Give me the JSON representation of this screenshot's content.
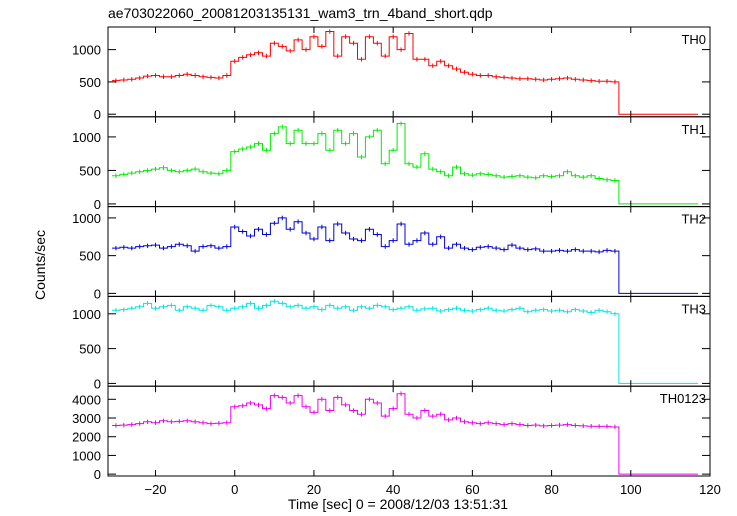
{
  "chart_data": {
    "type": "line",
    "title": "ae703022060_20081203135131_wam3_trn_4band_short.qdp",
    "xlabel": "Time [sec] 0 = 2008/12/03 13:51:31",
    "ylabel": "Counts/sec",
    "xlim": [
      -32,
      120
    ],
    "xticks": [
      -20,
      0,
      20,
      40,
      60,
      80,
      100,
      120
    ],
    "xtick_labels": [
      "−20",
      "0",
      "20",
      "40",
      "60",
      "80",
      "100",
      "120"
    ],
    "grid": false,
    "bin_width": 1,
    "x": [
      -30,
      -28,
      -26,
      -24,
      -22,
      -20,
      -18,
      -16,
      -14,
      -12,
      -10,
      -8,
      -6,
      -4,
      -2,
      0,
      2,
      4,
      6,
      8,
      10,
      12,
      14,
      16,
      18,
      20,
      22,
      24,
      26,
      28,
      30,
      32,
      34,
      36,
      38,
      40,
      42,
      44,
      46,
      48,
      50,
      52,
      54,
      56,
      58,
      60,
      62,
      64,
      66,
      68,
      70,
      72,
      74,
      76,
      78,
      80,
      82,
      84,
      86,
      88,
      90,
      92,
      94,
      96,
      98,
      100,
      102,
      104,
      106,
      108,
      110,
      112,
      114,
      116
    ],
    "series": [
      {
        "name": "TH0",
        "color": "#ff0000",
        "ylim": [
          -40,
          1350
        ],
        "yticks": [
          0,
          500,
          1000
        ],
        "values": [
          520,
          530,
          540,
          560,
          590,
          600,
          580,
          580,
          600,
          620,
          600,
          580,
          570,
          560,
          600,
          820,
          880,
          920,
          950,
          900,
          1100,
          1050,
          980,
          1150,
          1000,
          1200,
          1050,
          1280,
          900,
          1200,
          1100,
          850,
          1200,
          1100,
          900,
          1200,
          1000,
          1250,
          850,
          850,
          750,
          820,
          750,
          700,
          650,
          620,
          600,
          600,
          580,
          570,
          560,
          550,
          550,
          540,
          530,
          540,
          550,
          560,
          540,
          530,
          520,
          510,
          510,
          500,
          0,
          0,
          0,
          0,
          0,
          0,
          0,
          0,
          0,
          0
        ]
      },
      {
        "name": "TH1",
        "color": "#00ee00",
        "ylim": [
          -40,
          1300
        ],
        "yticks": [
          0,
          500,
          1000
        ],
        "values": [
          420,
          440,
          460,
          480,
          500,
          520,
          540,
          500,
          480,
          500,
          520,
          480,
          460,
          450,
          500,
          780,
          820,
          850,
          900,
          800,
          1050,
          1150,
          900,
          1100,
          900,
          900,
          1050,
          800,
          1100,
          900,
          1050,
          700,
          1000,
          1100,
          600,
          800,
          1200,
          600,
          550,
          750,
          520,
          480,
          420,
          550,
          450,
          430,
          450,
          440,
          420,
          400,
          410,
          420,
          400,
          390,
          420,
          410,
          420,
          480,
          420,
          400,
          420,
          380,
          360,
          350,
          0,
          0,
          0,
          0,
          0,
          0,
          0,
          0,
          0,
          0
        ]
      },
      {
        "name": "TH2",
        "color": "#0000dd",
        "ylim": [
          -40,
          1150
        ],
        "yticks": [
          0,
          500,
          1000
        ],
        "values": [
          600,
          610,
          600,
          620,
          630,
          640,
          600,
          620,
          650,
          630,
          560,
          620,
          630,
          600,
          620,
          880,
          820,
          760,
          850,
          780,
          930,
          1000,
          850,
          950,
          800,
          720,
          880,
          700,
          920,
          800,
          720,
          700,
          850,
          780,
          620,
          700,
          920,
          650,
          700,
          800,
          650,
          750,
          600,
          650,
          600,
          580,
          610,
          620,
          600,
          580,
          640,
          600,
          580,
          590,
          560,
          560,
          570,
          560,
          580,
          560,
          560,
          550,
          570,
          560,
          0,
          0,
          0,
          0,
          0,
          0,
          0,
          0,
          0,
          0
        ]
      },
      {
        "name": "TH3",
        "color": "#00e5e5",
        "ylim": [
          -40,
          1250
        ],
        "yticks": [
          0,
          500,
          1000
        ],
        "values": [
          1050,
          1060,
          1080,
          1100,
          1150,
          1080,
          1100,
          1120,
          1050,
          1100,
          1080,
          1050,
          1120,
          1100,
          1050,
          1080,
          1100,
          1150,
          1080,
          1120,
          1180,
          1150,
          1100,
          1120,
          1080,
          1100,
          1060,
          1120,
          1080,
          1100,
          1050,
          1100,
          1080,
          1120,
          1100,
          1060,
          1080,
          1100,
          1050,
          1070,
          1080,
          1040,
          1060,
          1080,
          1050,
          1040,
          1060,
          1080,
          1050,
          1040,
          1060,
          1080,
          1030,
          1050,
          1060,
          1040,
          1050,
          1030,
          1060,
          1040,
          1020,
          1050,
          1030,
          1000,
          0,
          0,
          0,
          0,
          0,
          0,
          0,
          0,
          0,
          0
        ]
      },
      {
        "name": "TH0123",
        "color": "#ee00ee",
        "ylim": [
          -100,
          4700
        ],
        "yticks": [
          0,
          1000,
          2000,
          3000,
          4000
        ],
        "values": [
          2600,
          2620,
          2650,
          2700,
          2800,
          2750,
          2850,
          2800,
          2820,
          2850,
          2800,
          2750,
          2700,
          2720,
          2750,
          3600,
          3650,
          3800,
          3700,
          3500,
          4200,
          4100,
          3800,
          4200,
          3600,
          3300,
          4000,
          3400,
          4100,
          3700,
          3400,
          3200,
          4000,
          3800,
          3100,
          3500,
          4300,
          3200,
          3000,
          3400,
          3100,
          3200,
          2900,
          3000,
          2800,
          2750,
          2700,
          2750,
          2700,
          2650,
          2700,
          2650,
          2600,
          2620,
          2580,
          2600,
          2620,
          2650,
          2600,
          2580,
          2560,
          2550,
          2550,
          2520,
          0,
          0,
          0,
          0,
          0,
          0,
          0,
          0,
          0,
          0
        ]
      }
    ]
  }
}
